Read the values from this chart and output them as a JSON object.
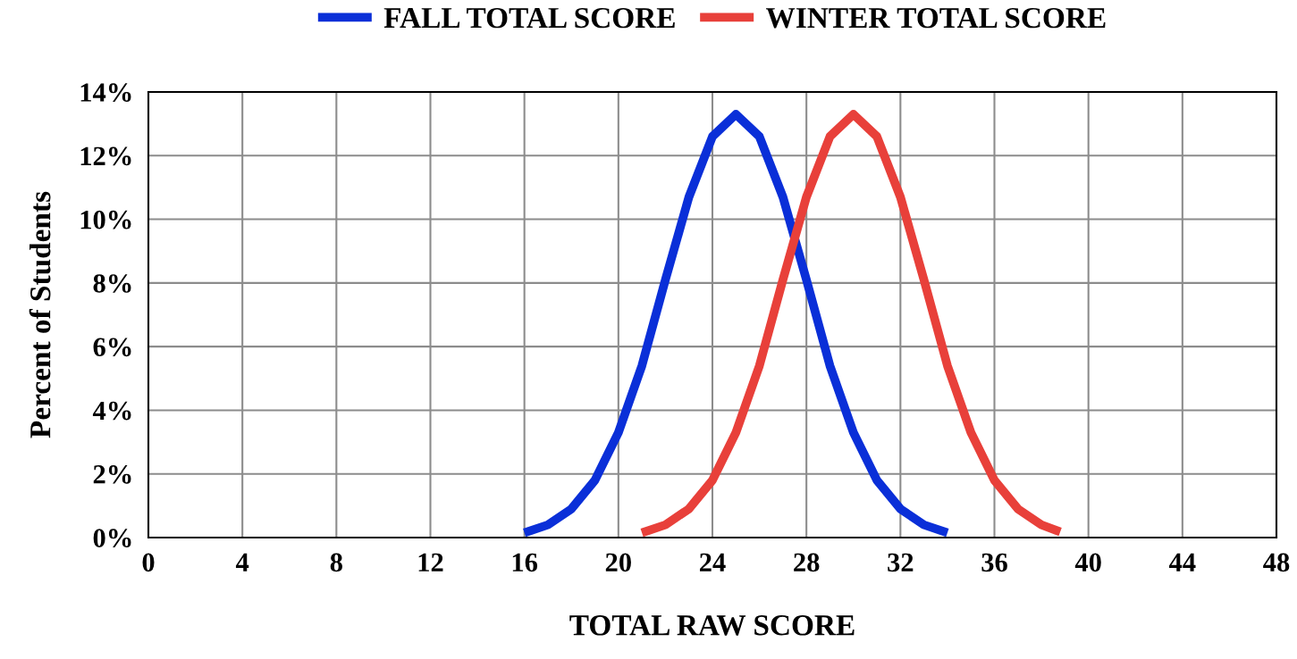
{
  "chart_data": {
    "type": "line",
    "xlabel": "TOTAL RAW SCORE",
    "ylabel": "Percent of Students",
    "xlim": [
      0,
      48
    ],
    "xticks": [
      0,
      4,
      8,
      12,
      16,
      20,
      24,
      28,
      32,
      36,
      40,
      44,
      48
    ],
    "ylim": [
      0,
      14
    ],
    "yticks": [
      {
        "value": 0,
        "label": "0%"
      },
      {
        "value": 2,
        "label": "2%"
      },
      {
        "value": 4,
        "label": "4%"
      },
      {
        "value": 6,
        "label": "6%"
      },
      {
        "value": 8,
        "label": "8%"
      },
      {
        "value": 10,
        "label": "10%"
      },
      {
        "value": 12,
        "label": "12%"
      },
      {
        "value": 14,
        "label": "14%"
      }
    ],
    "grid": true,
    "legend": "top",
    "marker": "none",
    "line_style": "solid",
    "series": [
      {
        "name": "FALL TOTAL SCORE",
        "color": "#0a2fd8",
        "x": [
          16,
          17,
          18,
          19,
          20,
          21,
          22,
          23,
          24,
          25,
          26,
          27,
          28,
          29,
          30,
          31,
          32,
          33,
          34
        ],
        "values": [
          0.15,
          0.4,
          0.9,
          1.8,
          3.3,
          5.4,
          8.1,
          10.7,
          12.6,
          13.3,
          12.6,
          10.7,
          8.1,
          5.4,
          3.3,
          1.8,
          0.9,
          0.4,
          0.15
        ]
      },
      {
        "name": "WINTER TOTAL SCORE",
        "color": "#e8403a",
        "x": [
          21,
          22,
          23,
          24,
          25,
          26,
          27,
          28,
          29,
          30,
          31,
          32,
          33,
          34,
          35,
          36,
          37,
          38,
          38.8
        ],
        "values": [
          0.15,
          0.4,
          0.9,
          1.8,
          3.3,
          5.4,
          8.1,
          10.7,
          12.6,
          13.3,
          12.6,
          10.7,
          8.1,
          5.4,
          3.3,
          1.8,
          0.9,
          0.4,
          0.18
        ]
      }
    ]
  }
}
